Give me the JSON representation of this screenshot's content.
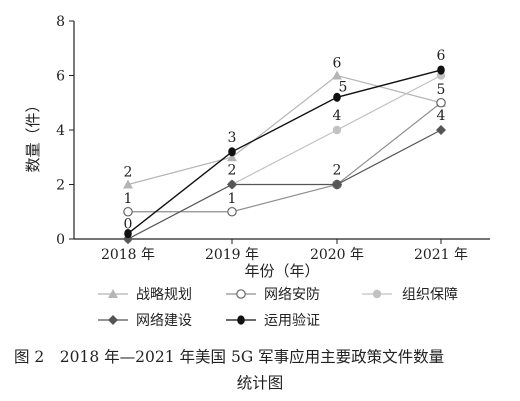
{
  "chart_data": {
    "type": "line",
    "title": "",
    "xlabel": "年份（年）",
    "ylabel": "数量（件）",
    "categories": [
      "2018 年",
      "2019 年",
      "2020 年",
      "2021 年"
    ],
    "ylim": [
      0,
      8
    ],
    "yticks": [
      "0",
      "2",
      "4",
      "6",
      "8"
    ],
    "grid": false,
    "legend_position": "bottom",
    "series": [
      {
        "name": "战略规划",
        "values": [
          2,
          3,
          6,
          5
        ],
        "labels": [
          "2",
          "",
          "6",
          ""
        ],
        "color": "#b5b5b5",
        "marker": "triangle"
      },
      {
        "name": "网络安防",
        "values": [
          1,
          1,
          2,
          5
        ],
        "labels": [
          "1",
          "1",
          "",
          "5"
        ],
        "color": "#8f8f8f",
        "marker": "open-circle"
      },
      {
        "name": "组织保障",
        "values": [
          0,
          2,
          4,
          6
        ],
        "labels": [
          "",
          "",
          "4",
          ""
        ],
        "color": "#c2c2c2",
        "marker": "filled-circle"
      },
      {
        "name": "网络建设",
        "values": [
          0,
          2,
          2,
          4
        ],
        "labels": [
          "",
          "2",
          "2",
          "4"
        ],
        "color": "#555555",
        "marker": "diamond"
      },
      {
        "name": "运用验证",
        "values": [
          0.2,
          3.2,
          5.2,
          6.2
        ],
        "labels": [
          "0",
          "3",
          "5",
          "6"
        ],
        "color": "#111111",
        "marker": "teardrop"
      }
    ]
  },
  "caption": {
    "line1": "图 2　2018 年—2021 年美国 5G 军事应用主要政策文件数量",
    "line2": "统计图"
  }
}
